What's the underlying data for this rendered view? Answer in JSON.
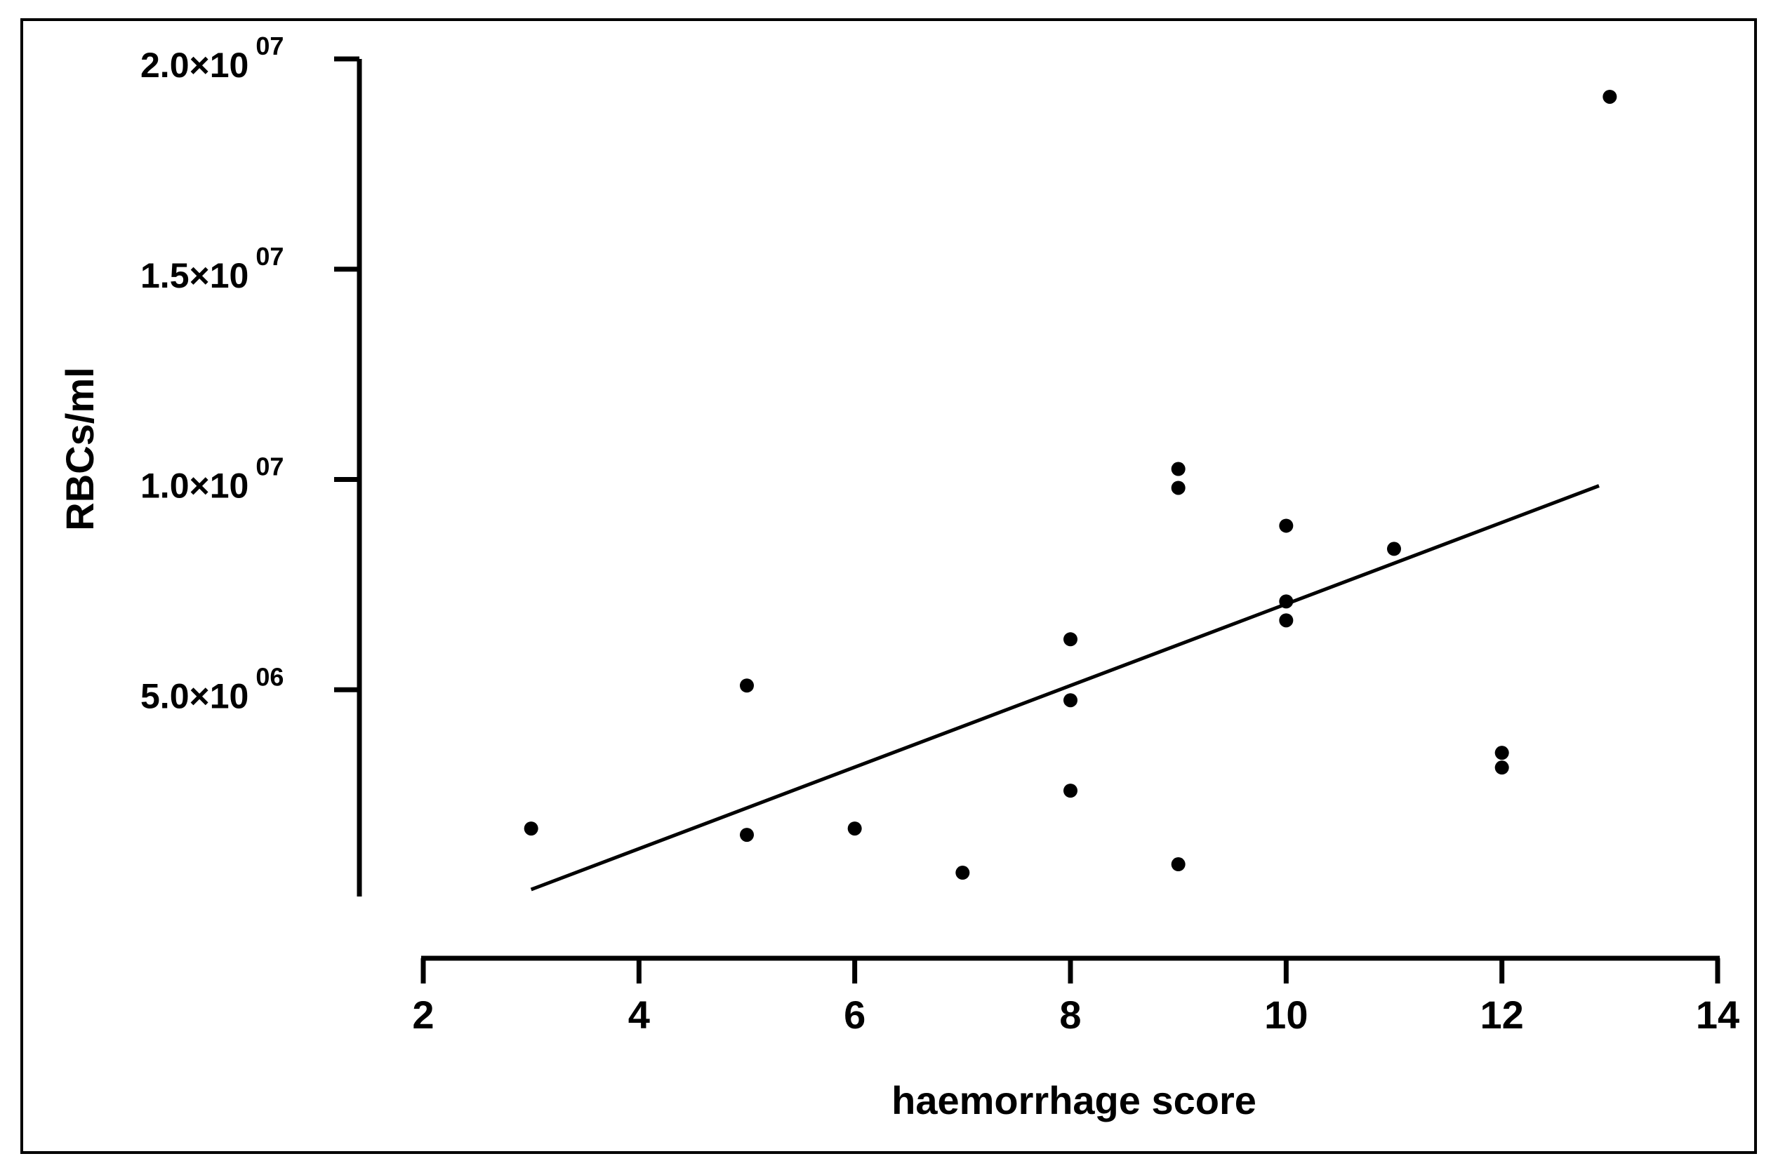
{
  "chart_data": {
    "type": "scatter",
    "xlabel": "haemorrhage score",
    "ylabel": "RBCs/ml",
    "xlim": [
      2,
      14
    ],
    "ylim": [
      0,
      20000000
    ],
    "x_ticks": [
      {
        "value": 2,
        "label": "2"
      },
      {
        "value": 4,
        "label": "4"
      },
      {
        "value": 6,
        "label": "6"
      },
      {
        "value": 8,
        "label": "8"
      },
      {
        "value": 10,
        "label": "10"
      },
      {
        "value": 12,
        "label": "12"
      },
      {
        "value": 14,
        "label": "14"
      }
    ],
    "y_ticks": [
      {
        "value": 5000000,
        "mantissa": "5.0×10",
        "exponent": "06"
      },
      {
        "value": 10000000,
        "mantissa": "1.0×10",
        "exponent": "07"
      },
      {
        "value": 15000000,
        "mantissa": "1.5×10",
        "exponent": "07"
      },
      {
        "value": 20000000,
        "mantissa": "2.0×10",
        "exponent": "07"
      }
    ],
    "points": [
      {
        "x": 3,
        "y": 1700000
      },
      {
        "x": 5,
        "y": 5100000
      },
      {
        "x": 5,
        "y": 1550000
      },
      {
        "x": 6,
        "y": 1700000
      },
      {
        "x": 7,
        "y": 650000
      },
      {
        "x": 8,
        "y": 6200000
      },
      {
        "x": 8,
        "y": 4750000
      },
      {
        "x": 8,
        "y": 2600000
      },
      {
        "x": 9,
        "y": 10250000
      },
      {
        "x": 9,
        "y": 9800000
      },
      {
        "x": 9,
        "y": 850000
      },
      {
        "x": 10,
        "y": 8900000
      },
      {
        "x": 10,
        "y": 7100000
      },
      {
        "x": 10,
        "y": 6650000
      },
      {
        "x": 11,
        "y": 8350000
      },
      {
        "x": 12,
        "y": 3500000
      },
      {
        "x": 12,
        "y": 3150000
      },
      {
        "x": 13,
        "y": 19100000
      }
    ],
    "regression_line": {
      "x1": 3,
      "y1": 250000,
      "x2": 12.9,
      "y2": 9850000
    },
    "grid": false,
    "legend": "none"
  }
}
